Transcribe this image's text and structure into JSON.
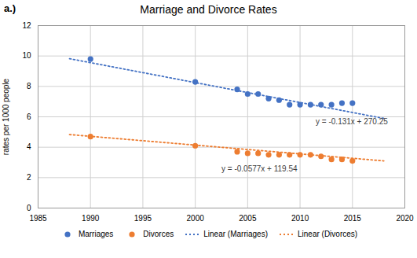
{
  "chart_data": {
    "type": "scatter",
    "title": "Marriage and Divorce Rates",
    "panel_label": "a.)",
    "ylabel": "rates per 1000 people",
    "xlim": [
      1985,
      2020
    ],
    "ylim": [
      0,
      12
    ],
    "xticks": [
      1985,
      1990,
      1995,
      2000,
      2005,
      2010,
      2015,
      2020
    ],
    "yticks": [
      0,
      2,
      4,
      6,
      8,
      10,
      12
    ],
    "grid": true,
    "legend": "bottom",
    "series": [
      {
        "name": "Marriages",
        "type": "scatter",
        "marker": "circle",
        "color": "#4472C4",
        "x": [
          1990,
          2000,
          2004,
          2005,
          2006,
          2007,
          2008,
          2009,
          2010,
          2011,
          2012,
          2013,
          2014,
          2015
        ],
        "values": [
          9.8,
          8.3,
          7.8,
          7.5,
          7.5,
          7.2,
          7.1,
          6.8,
          6.8,
          6.8,
          6.8,
          6.8,
          6.9,
          6.9
        ]
      },
      {
        "name": "Divorces",
        "type": "scatter",
        "marker": "circle",
        "color": "#ED7D31",
        "x": [
          1990,
          2000,
          2004,
          2005,
          2006,
          2007,
          2008,
          2009,
          2010,
          2011,
          2012,
          2013,
          2014,
          2015
        ],
        "values": [
          4.7,
          4.1,
          3.7,
          3.6,
          3.6,
          3.5,
          3.5,
          3.5,
          3.5,
          3.5,
          3.4,
          3.2,
          3.2,
          3.1
        ]
      },
      {
        "name": "Linear (Marriages)",
        "type": "line",
        "line_style": "dotted",
        "color": "#4472C4",
        "x": [
          1988,
          2018
        ],
        "values": [
          9.822,
          5.892
        ]
      },
      {
        "name": "Linear (Divorces)",
        "type": "line",
        "line_style": "dotted",
        "color": "#ED7D31",
        "x": [
          1988,
          2018
        ],
        "values": [
          4.8324,
          3.1014
        ]
      }
    ],
    "annotations": [
      {
        "text": "y = -0.131x + 270.25",
        "x": 2011.5,
        "y": 5.7
      },
      {
        "text": "y = -0.0577x + 119.54",
        "x": 2002.5,
        "y": 2.55
      }
    ]
  }
}
